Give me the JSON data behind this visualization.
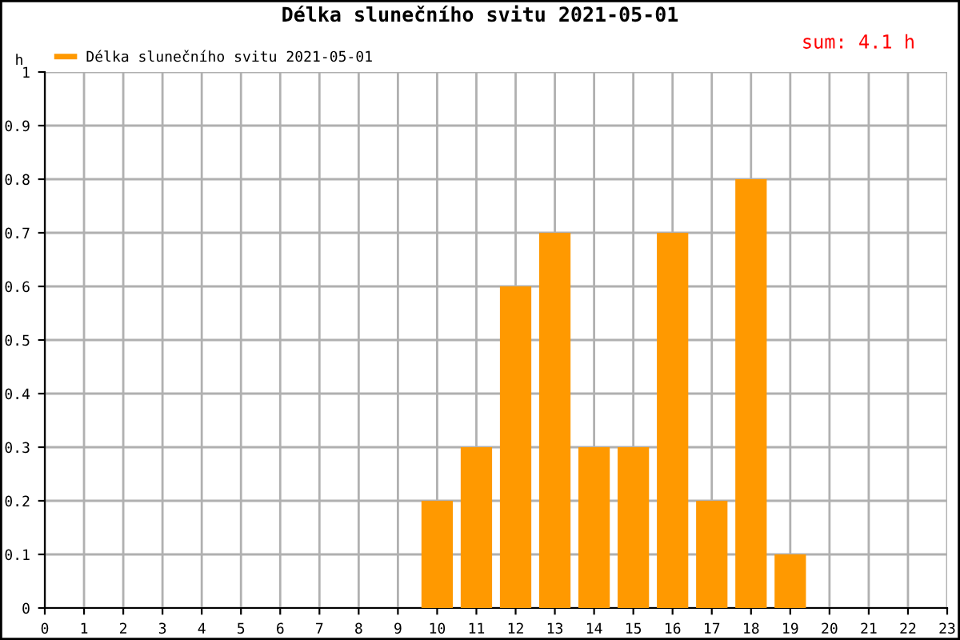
{
  "chart_data": {
    "type": "bar",
    "title": "Délka slunečního svitu 2021-05-01",
    "ylabel": "h",
    "x": [
      10,
      11,
      12,
      13,
      14,
      15,
      16,
      17,
      18,
      19
    ],
    "series": [
      {
        "name": "Délka slunečního svitu 2021-05-01",
        "color": "#ff9900",
        "values": [
          0.2,
          0.3,
          0.6,
          0.7,
          0.3,
          0.3,
          0.7,
          0.2,
          0.8,
          0.1
        ]
      }
    ],
    "xlim": [
      0,
      23
    ],
    "xticks": [
      0,
      1,
      2,
      3,
      4,
      5,
      6,
      7,
      8,
      9,
      10,
      11,
      12,
      13,
      14,
      15,
      16,
      17,
      18,
      19,
      20,
      21,
      22,
      23
    ],
    "ylim": [
      0,
      1.0
    ],
    "yticks": [
      0,
      0.1,
      0.2,
      0.3,
      0.4,
      0.5,
      0.6,
      0.7,
      0.8,
      0.9,
      1
    ],
    "grid": true,
    "legend": "top left",
    "annotations": [
      "sum: 4.1 h"
    ]
  }
}
